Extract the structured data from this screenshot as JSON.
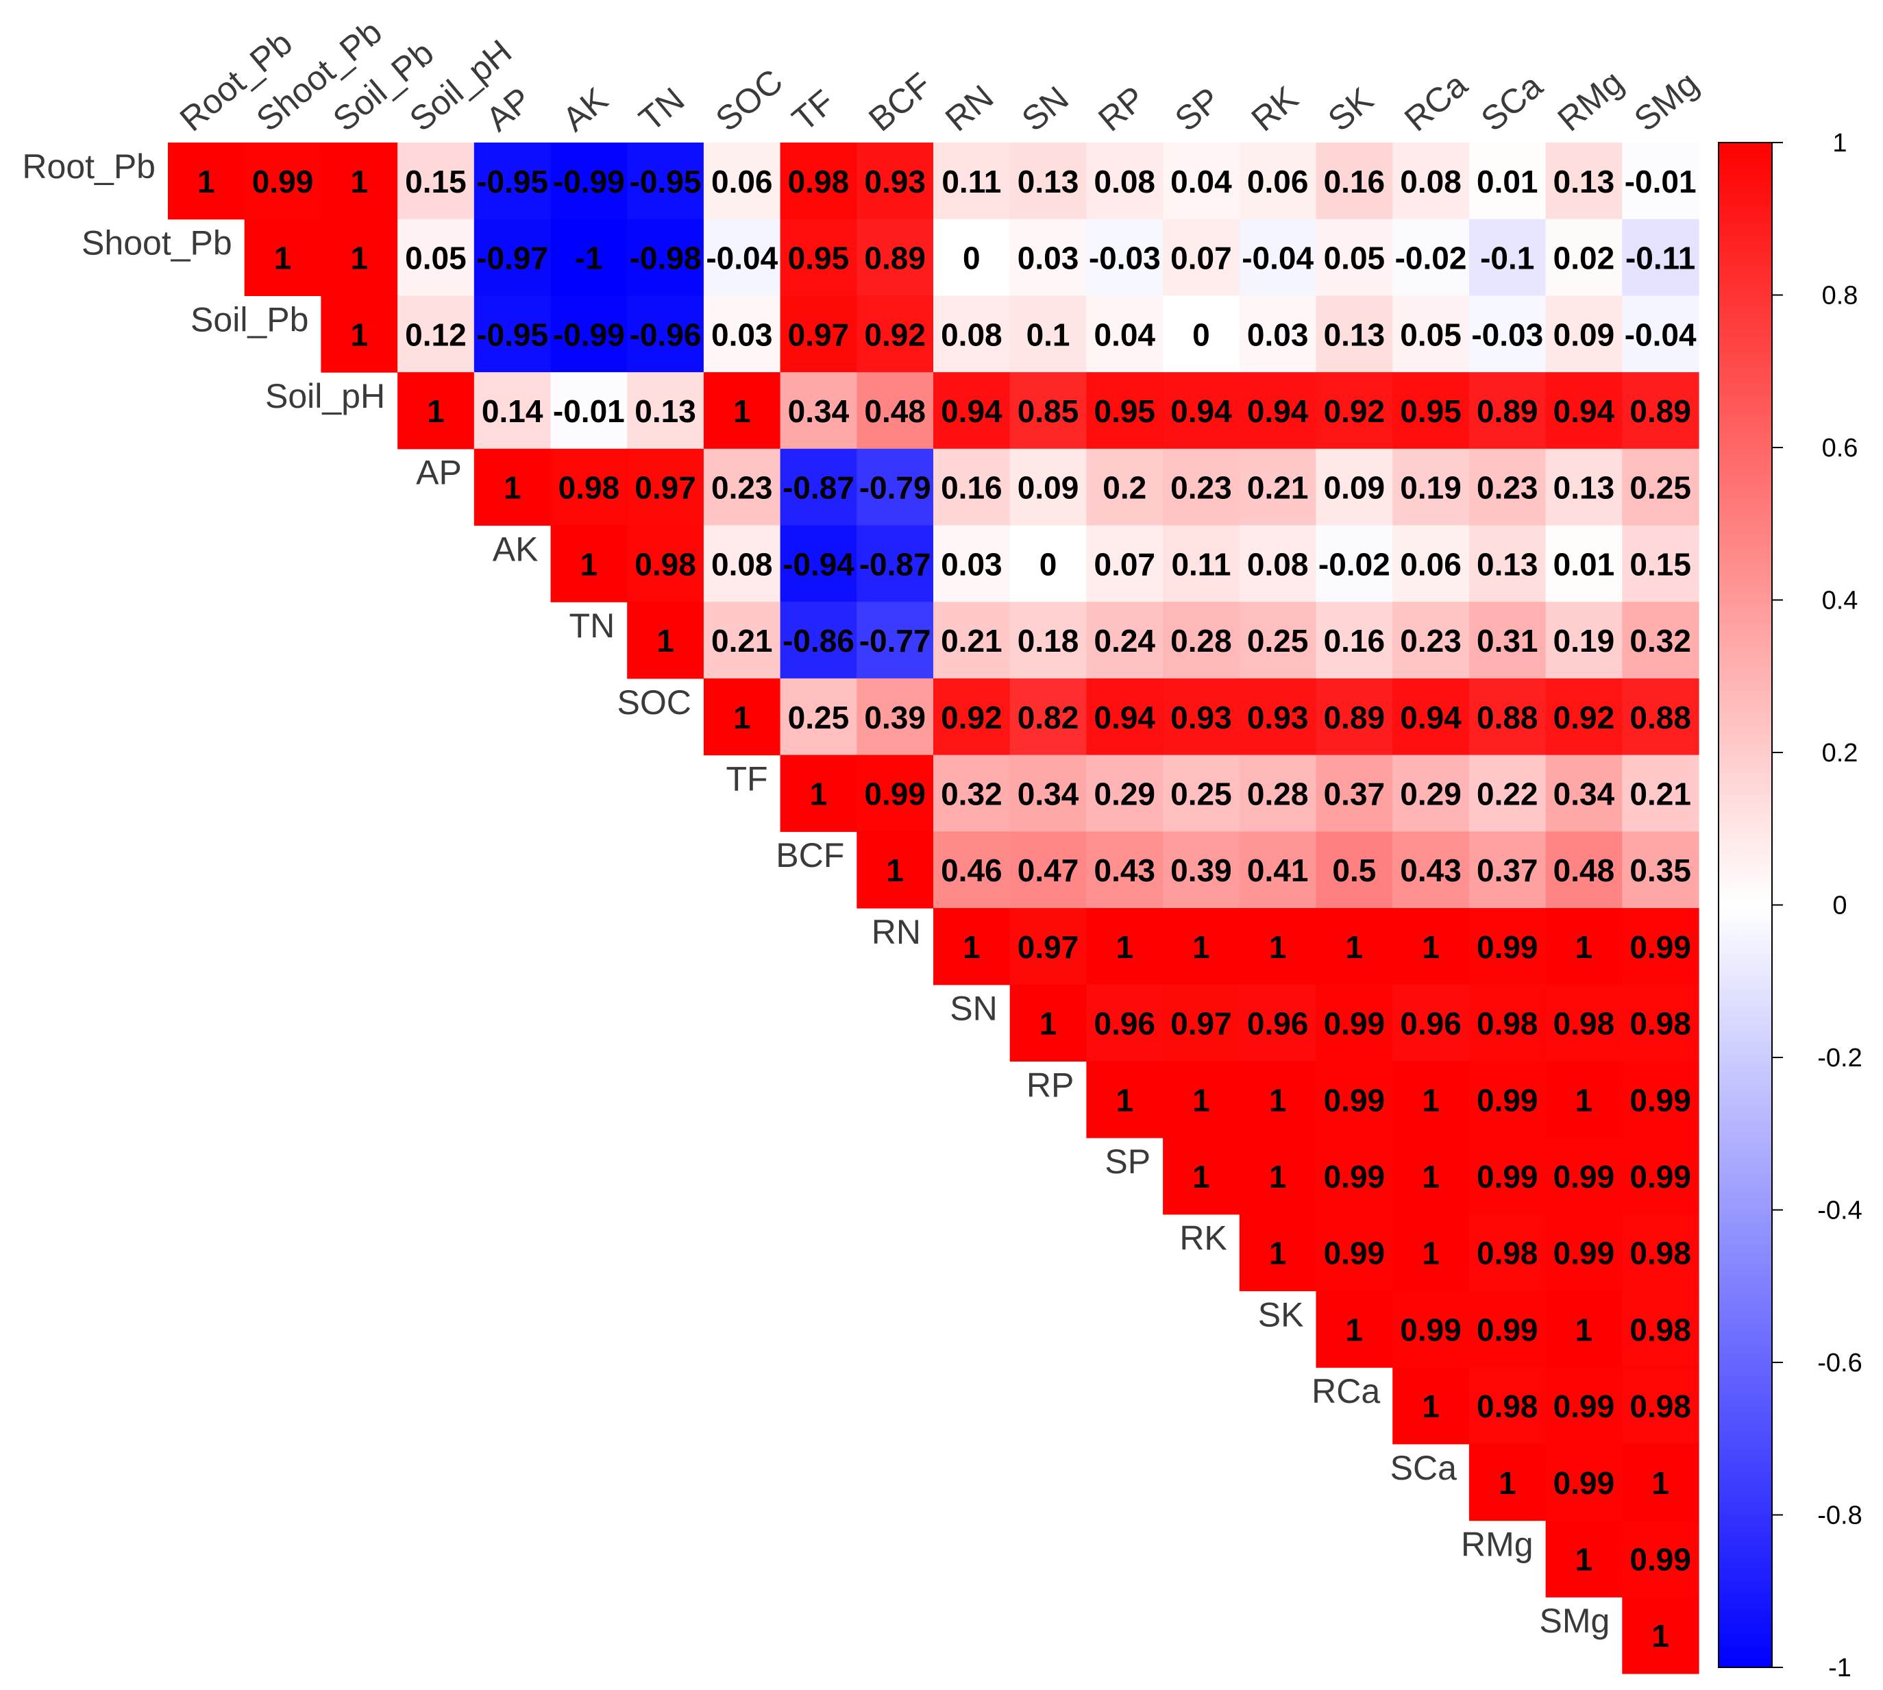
{
  "chart_data": {
    "type": "heatmap",
    "variables": [
      "Root_Pb",
      "Shoot_Pb",
      "Soil_Pb",
      "Soil_pH",
      "AP",
      "AK",
      "TN",
      "SOC",
      "TF",
      "BCF",
      "RN",
      "SN",
      "RP",
      "SP",
      "RK",
      "SK",
      "RCa",
      "SCa",
      "RMg",
      "SMg"
    ],
    "matrix": [
      [
        1,
        0.99,
        1,
        0.15,
        -0.95,
        -0.99,
        -0.95,
        0.06,
        0.98,
        0.93,
        0.11,
        0.13,
        0.08,
        0.04,
        0.06,
        0.16,
        0.08,
        0.01,
        0.13,
        -0.01
      ],
      [
        null,
        1,
        1,
        0.05,
        -0.97,
        -1,
        -0.98,
        -0.04,
        0.95,
        0.89,
        0,
        0.03,
        -0.03,
        0.07,
        -0.04,
        0.05,
        -0.02,
        -0.1,
        0.02,
        -0.11
      ],
      [
        null,
        null,
        1,
        0.12,
        -0.95,
        -0.99,
        -0.96,
        0.03,
        0.97,
        0.92,
        0.08,
        0.1,
        0.04,
        0,
        0.03,
        0.13,
        0.05,
        -0.03,
        0.09,
        -0.04
      ],
      [
        null,
        null,
        null,
        1,
        0.14,
        -0.01,
        0.13,
        1,
        0.34,
        0.48,
        0.94,
        0.85,
        0.95,
        0.94,
        0.94,
        0.92,
        0.95,
        0.89,
        0.94,
        0.89
      ],
      [
        null,
        null,
        null,
        null,
        1,
        0.98,
        0.97,
        0.23,
        -0.87,
        -0.79,
        0.16,
        0.09,
        0.2,
        0.23,
        0.21,
        0.09,
        0.19,
        0.23,
        0.13,
        0.25
      ],
      [
        null,
        null,
        null,
        null,
        null,
        1,
        0.98,
        0.08,
        -0.94,
        -0.87,
        0.03,
        0,
        0.07,
        0.11,
        0.08,
        -0.02,
        0.06,
        0.13,
        0.01,
        0.15
      ],
      [
        null,
        null,
        null,
        null,
        null,
        null,
        1,
        0.21,
        -0.86,
        -0.77,
        0.21,
        0.18,
        0.24,
        0.28,
        0.25,
        0.16,
        0.23,
        0.31,
        0.19,
        0.32
      ],
      [
        null,
        null,
        null,
        null,
        null,
        null,
        null,
        1,
        0.25,
        0.39,
        0.92,
        0.82,
        0.94,
        0.93,
        0.93,
        0.89,
        0.94,
        0.88,
        0.92,
        0.88
      ],
      [
        null,
        null,
        null,
        null,
        null,
        null,
        null,
        null,
        1,
        0.99,
        0.32,
        0.34,
        0.29,
        0.25,
        0.28,
        0.37,
        0.29,
        0.22,
        0.34,
        0.21
      ],
      [
        null,
        null,
        null,
        null,
        null,
        null,
        null,
        null,
        null,
        1,
        0.46,
        0.47,
        0.43,
        0.39,
        0.41,
        0.5,
        0.43,
        0.37,
        0.48,
        0.35
      ],
      [
        null,
        null,
        null,
        null,
        null,
        null,
        null,
        null,
        null,
        null,
        1,
        0.97,
        1,
        1,
        1,
        1,
        1,
        0.99,
        1,
        0.99
      ],
      [
        null,
        null,
        null,
        null,
        null,
        null,
        null,
        null,
        null,
        null,
        null,
        1,
        0.96,
        0.97,
        0.96,
        0.99,
        0.96,
        0.98,
        0.98,
        0.98
      ],
      [
        null,
        null,
        null,
        null,
        null,
        null,
        null,
        null,
        null,
        null,
        null,
        null,
        1,
        1,
        1,
        0.99,
        1,
        0.99,
        1,
        0.99
      ],
      [
        null,
        null,
        null,
        null,
        null,
        null,
        null,
        null,
        null,
        null,
        null,
        null,
        null,
        1,
        1,
        0.99,
        1,
        0.99,
        0.99,
        0.99
      ],
      [
        null,
        null,
        null,
        null,
        null,
        null,
        null,
        null,
        null,
        null,
        null,
        null,
        null,
        null,
        1,
        0.99,
        1,
        0.98,
        0.99,
        0.98
      ],
      [
        null,
        null,
        null,
        null,
        null,
        null,
        null,
        null,
        null,
        null,
        null,
        null,
        null,
        null,
        null,
        1,
        0.99,
        0.99,
        1,
        0.98
      ],
      [
        null,
        null,
        null,
        null,
        null,
        null,
        null,
        null,
        null,
        null,
        null,
        null,
        null,
        null,
        null,
        null,
        1,
        0.98,
        0.99,
        0.98
      ],
      [
        null,
        null,
        null,
        null,
        null,
        null,
        null,
        null,
        null,
        null,
        null,
        null,
        null,
        null,
        null,
        null,
        null,
        1,
        0.99,
        1
      ],
      [
        null,
        null,
        null,
        null,
        null,
        null,
        null,
        null,
        null,
        null,
        null,
        null,
        null,
        null,
        null,
        null,
        null,
        null,
        1,
        0.99
      ],
      [
        null,
        null,
        null,
        null,
        null,
        null,
        null,
        null,
        null,
        null,
        null,
        null,
        null,
        null,
        null,
        null,
        null,
        null,
        null,
        1
      ]
    ],
    "value_range": [
      -1,
      1
    ],
    "colorbar_ticks": [
      "1",
      "0.8",
      "0.6",
      "0.4",
      "0.2",
      "0",
      "-0.2",
      "-0.4",
      "-0.6",
      "-0.8",
      "-1"
    ],
    "colors": {
      "low": "#0000ff",
      "mid": "#ffffff",
      "high": "#ff0000",
      "text": "#000000",
      "label": "#3a3a3a"
    },
    "layout": "upper-triangle",
    "legend": "right"
  }
}
